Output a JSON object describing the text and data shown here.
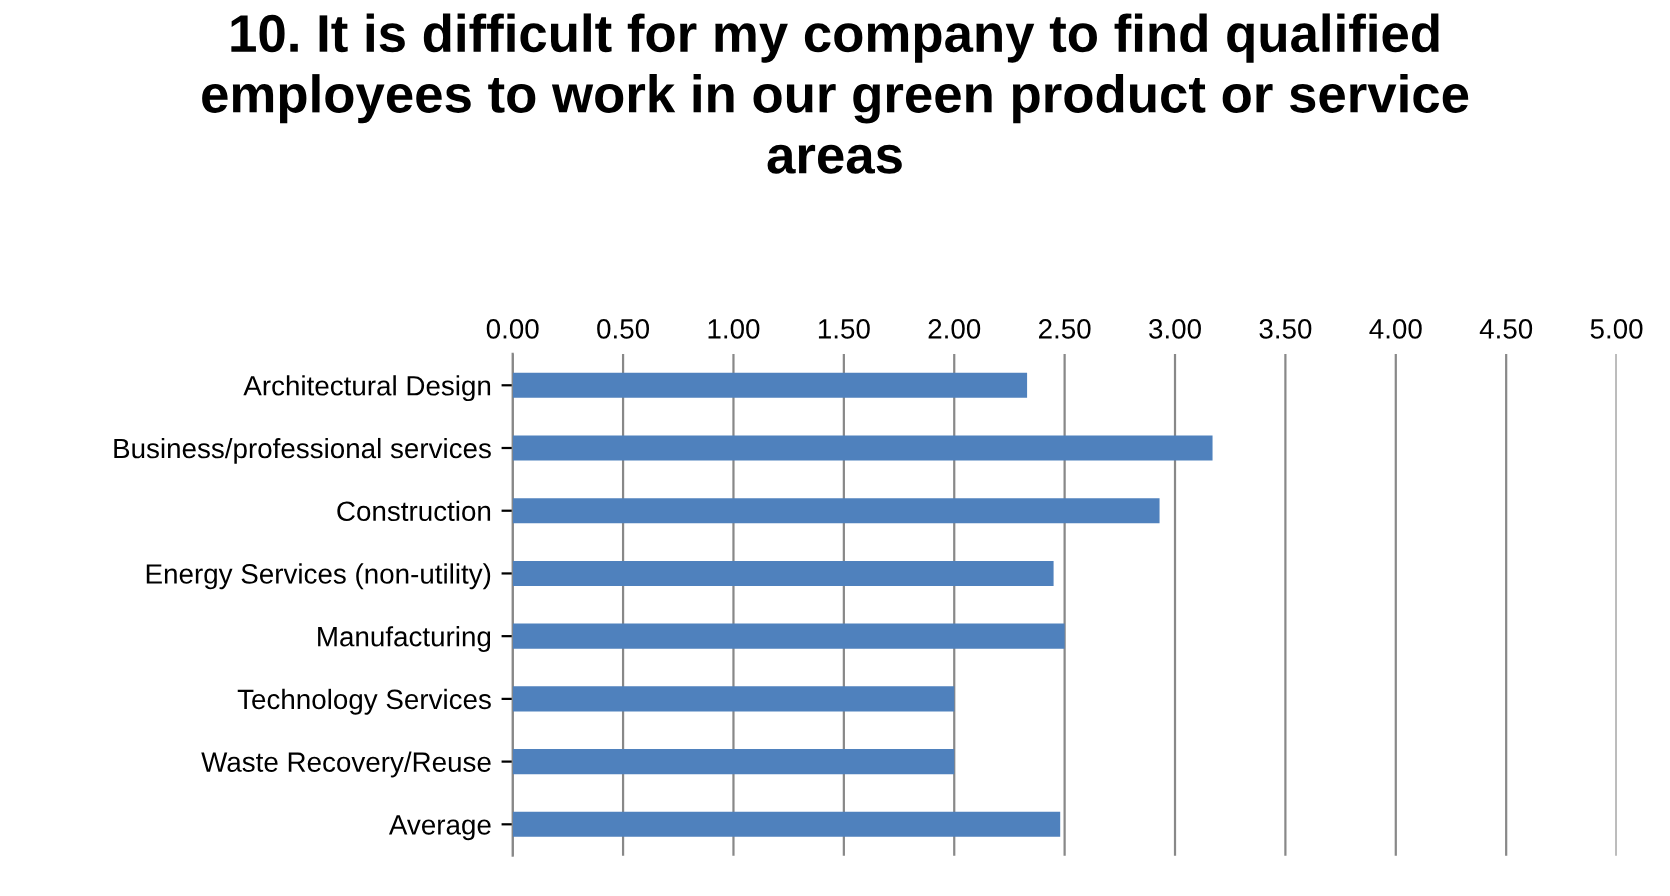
{
  "chart_data": {
    "type": "bar",
    "orientation": "horizontal",
    "title": "10. It is difficult for my company to find qualified\nemployees to work in our green product or service\nareas",
    "categories": [
      "Architectural Design",
      "Business/professional services",
      "Construction",
      "Energy Services (non-utility)",
      "Manufacturing",
      "Technology Services",
      "Waste Recovery/Reuse",
      "Average"
    ],
    "values": [
      2.33,
      3.17,
      2.93,
      2.45,
      2.5,
      2.0,
      2.0,
      2.48
    ],
    "color": "#4f81bd",
    "xlim": [
      0,
      5
    ],
    "xticks": [
      {
        "value": 0,
        "label": "0.00"
      },
      {
        "value": 0.5,
        "label": "0.50"
      },
      {
        "value": 1,
        "label": "1.00"
      },
      {
        "value": 1.5,
        "label": "1.50"
      },
      {
        "value": 2,
        "label": "2.00"
      },
      {
        "value": 2.5,
        "label": "2.50"
      },
      {
        "value": 3,
        "label": "3.00"
      },
      {
        "value": 3.5,
        "label": "3.50"
      },
      {
        "value": 4,
        "label": "4.00"
      },
      {
        "value": 4.5,
        "label": "4.50"
      },
      {
        "value": 5,
        "label": "5.00"
      }
    ],
    "grid": "x"
  }
}
